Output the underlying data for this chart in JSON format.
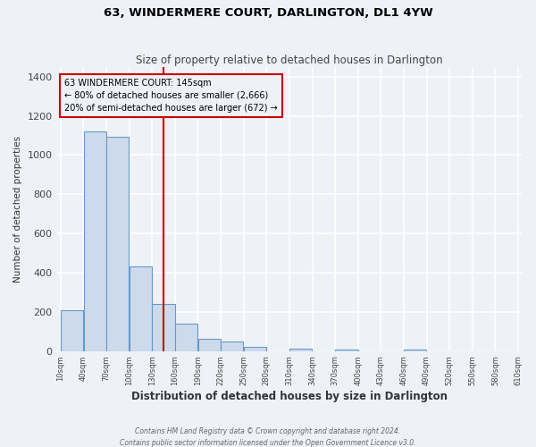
{
  "title": "63, WINDERMERE COURT, DARLINGTON, DL1 4YW",
  "subtitle": "Size of property relative to detached houses in Darlington",
  "xlabel": "Distribution of detached houses by size in Darlington",
  "ylabel": "Number of detached properties",
  "bar_color": "#cddaeb",
  "bar_edge_color": "#6699cc",
  "background_color": "#eef2f7",
  "grid_color": "#ffffff",
  "annotation_box_color": "#cc0000",
  "annotation_line_color": "#cc0000",
  "property_line_x": 145,
  "annotation_title": "63 WINDERMERE COURT: 145sqm",
  "annotation_line1": "← 80% of detached houses are smaller (2,666)",
  "annotation_line2": "20% of semi-detached houses are larger (672) →",
  "footer1": "Contains HM Land Registry data © Crown copyright and database right 2024.",
  "footer2": "Contains public sector information licensed under the Open Government Licence v3.0.",
  "bins": [
    10,
    40,
    70,
    100,
    130,
    160,
    190,
    220,
    250,
    280,
    310,
    340,
    370,
    400,
    430,
    460,
    490,
    520,
    550,
    580,
    610
  ],
  "counts": [
    210,
    1120,
    1095,
    430,
    240,
    140,
    62,
    47,
    22,
    0,
    14,
    0,
    10,
    0,
    0,
    8,
    0,
    0,
    0,
    0
  ],
  "ylim": [
    0,
    1450
  ],
  "yticks": [
    0,
    200,
    400,
    600,
    800,
    1000,
    1200,
    1400
  ],
  "bin_width": 30
}
